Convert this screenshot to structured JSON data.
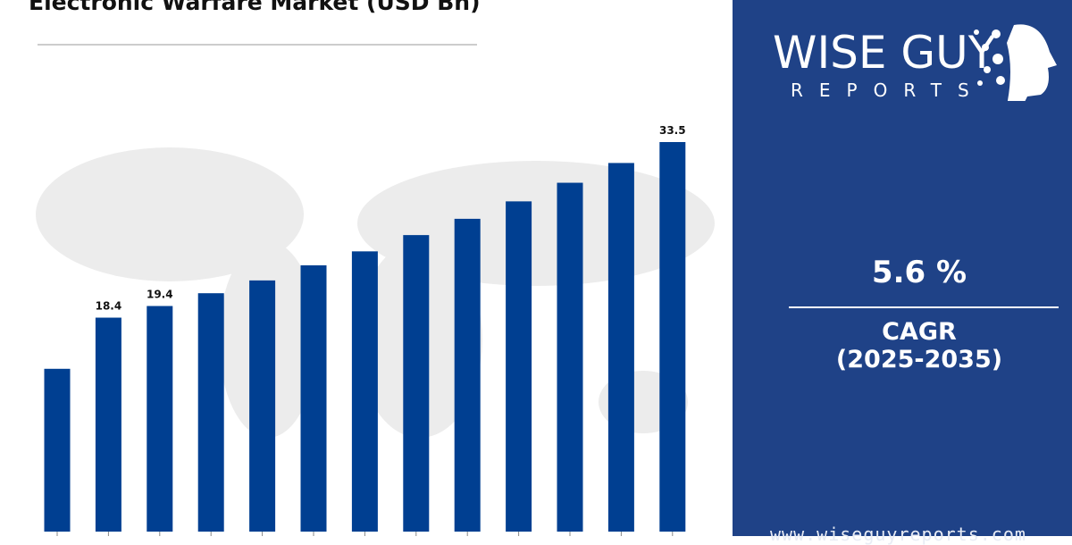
{
  "chart_data": {
    "type": "bar",
    "title": "Electronic Warfare Market (USD Bn)",
    "categories": [
      "",
      "",
      "",
      "",
      "",
      "",
      "",
      "",
      "",
      "",
      "",
      "",
      ""
    ],
    "values": [
      14.0,
      18.4,
      19.4,
      20.5,
      21.6,
      22.9,
      24.1,
      25.5,
      26.9,
      28.4,
      30.0,
      31.7,
      33.5
    ],
    "data_labels": [
      "",
      "18.4",
      "19.4",
      "",
      "",
      "",
      "",
      "",
      "",
      "",
      "",
      "",
      "33.5"
    ],
    "ylim": [
      0,
      33.5
    ],
    "grid": false,
    "bar_color": "#003f91",
    "background": "world-map"
  },
  "panel": {
    "logo_text": "WISE GUY",
    "logo_sub": "REPORTS",
    "cagr_value": "5.6 %",
    "cagr_label": "CAGR",
    "cagr_period": "(2025-2035)",
    "website": "www.wiseguyreports.com",
    "bg_color": "#1f4287"
  }
}
